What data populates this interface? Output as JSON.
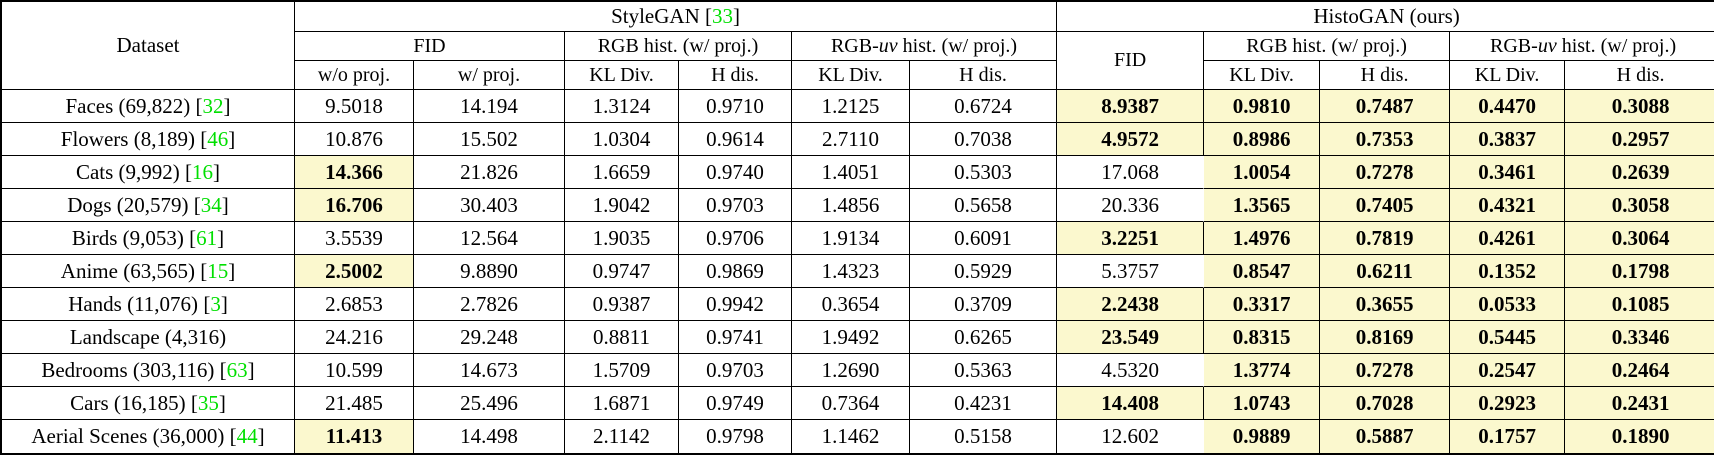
{
  "fmt": {
    "open": "[",
    "close": "]"
  },
  "colors": {
    "highlight": "#FBF8CE",
    "citation_green": "#00DF00",
    "border": "#000000"
  },
  "table": {
    "header": {
      "dataset": "Dataset",
      "stylegan_prefix": "StyleGAN ",
      "stylegan_cite": "33",
      "histogan": "HistoGAN (ours)",
      "fid": "FID",
      "fid_histogan": "FID",
      "rgb_hist": "RGB hist. (w/ proj.)",
      "rgb_uv_prefix": "RGB-",
      "rgb_uv_italic": "uv",
      "rgb_uv_suffix": " hist. (w/ proj.)",
      "wo_proj": "w/o proj.",
      "w_proj": "w/ proj.",
      "kl_div": "KL Div.",
      "h_dis": "H dis."
    },
    "rows": [
      {
        "dataset": "Faces (69,822)",
        "cite": "32",
        "cells": [
          {
            "v": "9.5018",
            "hl": false
          },
          {
            "v": "14.194",
            "hl": false
          },
          {
            "v": "1.3124",
            "hl": false
          },
          {
            "v": "0.9710",
            "hl": false
          },
          {
            "v": "1.2125",
            "hl": false
          },
          {
            "v": "0.6724",
            "hl": false
          },
          {
            "v": "8.9387",
            "hl": true
          },
          {
            "v": "0.9810",
            "hl": true
          },
          {
            "v": "0.7487",
            "hl": true
          },
          {
            "v": "0.4470",
            "hl": true
          },
          {
            "v": "0.3088",
            "hl": true
          }
        ]
      },
      {
        "dataset": "Flowers (8,189)",
        "cite": "46",
        "cells": [
          {
            "v": "10.876",
            "hl": false
          },
          {
            "v": "15.502",
            "hl": false
          },
          {
            "v": "1.0304",
            "hl": false
          },
          {
            "v": "0.9614",
            "hl": false
          },
          {
            "v": "2.7110",
            "hl": false
          },
          {
            "v": "0.7038",
            "hl": false
          },
          {
            "v": "4.9572",
            "hl": true
          },
          {
            "v": "0.8986",
            "hl": true
          },
          {
            "v": "0.7353",
            "hl": true
          },
          {
            "v": "0.3837",
            "hl": true
          },
          {
            "v": "0.2957",
            "hl": true
          }
        ]
      },
      {
        "dataset": "Cats (9,992)",
        "cite": "16",
        "cells": [
          {
            "v": "14.366",
            "hl": true
          },
          {
            "v": "21.826",
            "hl": false
          },
          {
            "v": "1.6659",
            "hl": false
          },
          {
            "v": "0.9740",
            "hl": false
          },
          {
            "v": "1.4051",
            "hl": false
          },
          {
            "v": "0.5303",
            "hl": false
          },
          {
            "v": "17.068",
            "hl": false
          },
          {
            "v": "1.0054",
            "hl": true
          },
          {
            "v": "0.7278",
            "hl": true
          },
          {
            "v": "0.3461",
            "hl": true
          },
          {
            "v": "0.2639",
            "hl": true
          }
        ]
      },
      {
        "dataset": "Dogs (20,579)",
        "cite": "34",
        "cells": [
          {
            "v": "16.706",
            "hl": true
          },
          {
            "v": "30.403",
            "hl": false
          },
          {
            "v": "1.9042",
            "hl": false
          },
          {
            "v": "0.9703",
            "hl": false
          },
          {
            "v": "1.4856",
            "hl": false
          },
          {
            "v": "0.5658",
            "hl": false
          },
          {
            "v": "20.336",
            "hl": false
          },
          {
            "v": "1.3565",
            "hl": true
          },
          {
            "v": "0.7405",
            "hl": true
          },
          {
            "v": "0.4321",
            "hl": true
          },
          {
            "v": "0.3058",
            "hl": true
          }
        ]
      },
      {
        "dataset": "Birds (9,053)",
        "cite": "61",
        "cells": [
          {
            "v": "3.5539",
            "hl": false
          },
          {
            "v": "12.564",
            "hl": false
          },
          {
            "v": "1.9035",
            "hl": false
          },
          {
            "v": "0.9706",
            "hl": false
          },
          {
            "v": "1.9134",
            "hl": false
          },
          {
            "v": "0.6091",
            "hl": false
          },
          {
            "v": "3.2251",
            "hl": true
          },
          {
            "v": "1.4976",
            "hl": true
          },
          {
            "v": "0.7819",
            "hl": true
          },
          {
            "v": "0.4261",
            "hl": true
          },
          {
            "v": "0.3064",
            "hl": true
          }
        ]
      },
      {
        "dataset": "Anime (63,565)",
        "cite": "15",
        "cells": [
          {
            "v": "2.5002",
            "hl": true
          },
          {
            "v": "9.8890",
            "hl": false
          },
          {
            "v": "0.9747",
            "hl": false
          },
          {
            "v": "0.9869",
            "hl": false
          },
          {
            "v": "1.4323",
            "hl": false
          },
          {
            "v": "0.5929",
            "hl": false
          },
          {
            "v": "5.3757",
            "hl": false
          },
          {
            "v": "0.8547",
            "hl": true
          },
          {
            "v": "0.6211",
            "hl": true
          },
          {
            "v": "0.1352",
            "hl": true
          },
          {
            "v": "0.1798",
            "hl": true
          }
        ]
      },
      {
        "dataset": "Hands (11,076)",
        "cite": "3",
        "cells": [
          {
            "v": "2.6853",
            "hl": false
          },
          {
            "v": "2.7826",
            "hl": false
          },
          {
            "v": "0.9387",
            "hl": false
          },
          {
            "v": "0.9942",
            "hl": false
          },
          {
            "v": "0.3654",
            "hl": false
          },
          {
            "v": "0.3709",
            "hl": false
          },
          {
            "v": "2.2438",
            "hl": true
          },
          {
            "v": "0.3317",
            "hl": true
          },
          {
            "v": "0.3655",
            "hl": true
          },
          {
            "v": "0.0533",
            "hl": true
          },
          {
            "v": "0.1085",
            "hl": true
          }
        ]
      },
      {
        "dataset": "Landscape (4,316)",
        "cite": "",
        "cells": [
          {
            "v": "24.216",
            "hl": false
          },
          {
            "v": "29.248",
            "hl": false
          },
          {
            "v": "0.8811",
            "hl": false
          },
          {
            "v": "0.9741",
            "hl": false
          },
          {
            "v": "1.9492",
            "hl": false
          },
          {
            "v": "0.6265",
            "hl": false
          },
          {
            "v": "23.549",
            "hl": true
          },
          {
            "v": "0.8315",
            "hl": true
          },
          {
            "v": "0.8169",
            "hl": true
          },
          {
            "v": "0.5445",
            "hl": true
          },
          {
            "v": "0.3346",
            "hl": true
          }
        ]
      },
      {
        "dataset": "Bedrooms (303,116)",
        "cite": "63",
        "cells": [
          {
            "v": "10.599",
            "hl": false
          },
          {
            "v": "14.673",
            "hl": false
          },
          {
            "v": "1.5709",
            "hl": false
          },
          {
            "v": "0.9703",
            "hl": false
          },
          {
            "v": "1.2690",
            "hl": false
          },
          {
            "v": "0.5363",
            "hl": false
          },
          {
            "v": "4.5320",
            "hl": false
          },
          {
            "v": "1.3774",
            "hl": true
          },
          {
            "v": "0.7278",
            "hl": true
          },
          {
            "v": "0.2547",
            "hl": true
          },
          {
            "v": "0.2464",
            "hl": true
          }
        ]
      },
      {
        "dataset": "Cars (16,185)",
        "cite": "35",
        "cells": [
          {
            "v": "21.485",
            "hl": false
          },
          {
            "v": "25.496",
            "hl": false
          },
          {
            "v": "1.6871",
            "hl": false
          },
          {
            "v": "0.9749",
            "hl": false
          },
          {
            "v": "0.7364",
            "hl": false
          },
          {
            "v": "0.4231",
            "hl": false
          },
          {
            "v": "14.408",
            "hl": true
          },
          {
            "v": "1.0743",
            "hl": true
          },
          {
            "v": "0.7028",
            "hl": true
          },
          {
            "v": "0.2923",
            "hl": true
          },
          {
            "v": "0.2431",
            "hl": true
          }
        ]
      },
      {
        "dataset": "Aerial Scenes (36,000)",
        "cite": "44",
        "cells": [
          {
            "v": "11.413",
            "hl": true
          },
          {
            "v": "14.498",
            "hl": false
          },
          {
            "v": "2.1142",
            "hl": false
          },
          {
            "v": "0.9798",
            "hl": false
          },
          {
            "v": "1.1462",
            "hl": false
          },
          {
            "v": "0.5158",
            "hl": false
          },
          {
            "v": "12.602",
            "hl": false
          },
          {
            "v": "0.9889",
            "hl": true
          },
          {
            "v": "0.5887",
            "hl": true
          },
          {
            "v": "0.1757",
            "hl": true
          },
          {
            "v": "0.1890",
            "hl": true
          }
        ]
      }
    ]
  }
}
